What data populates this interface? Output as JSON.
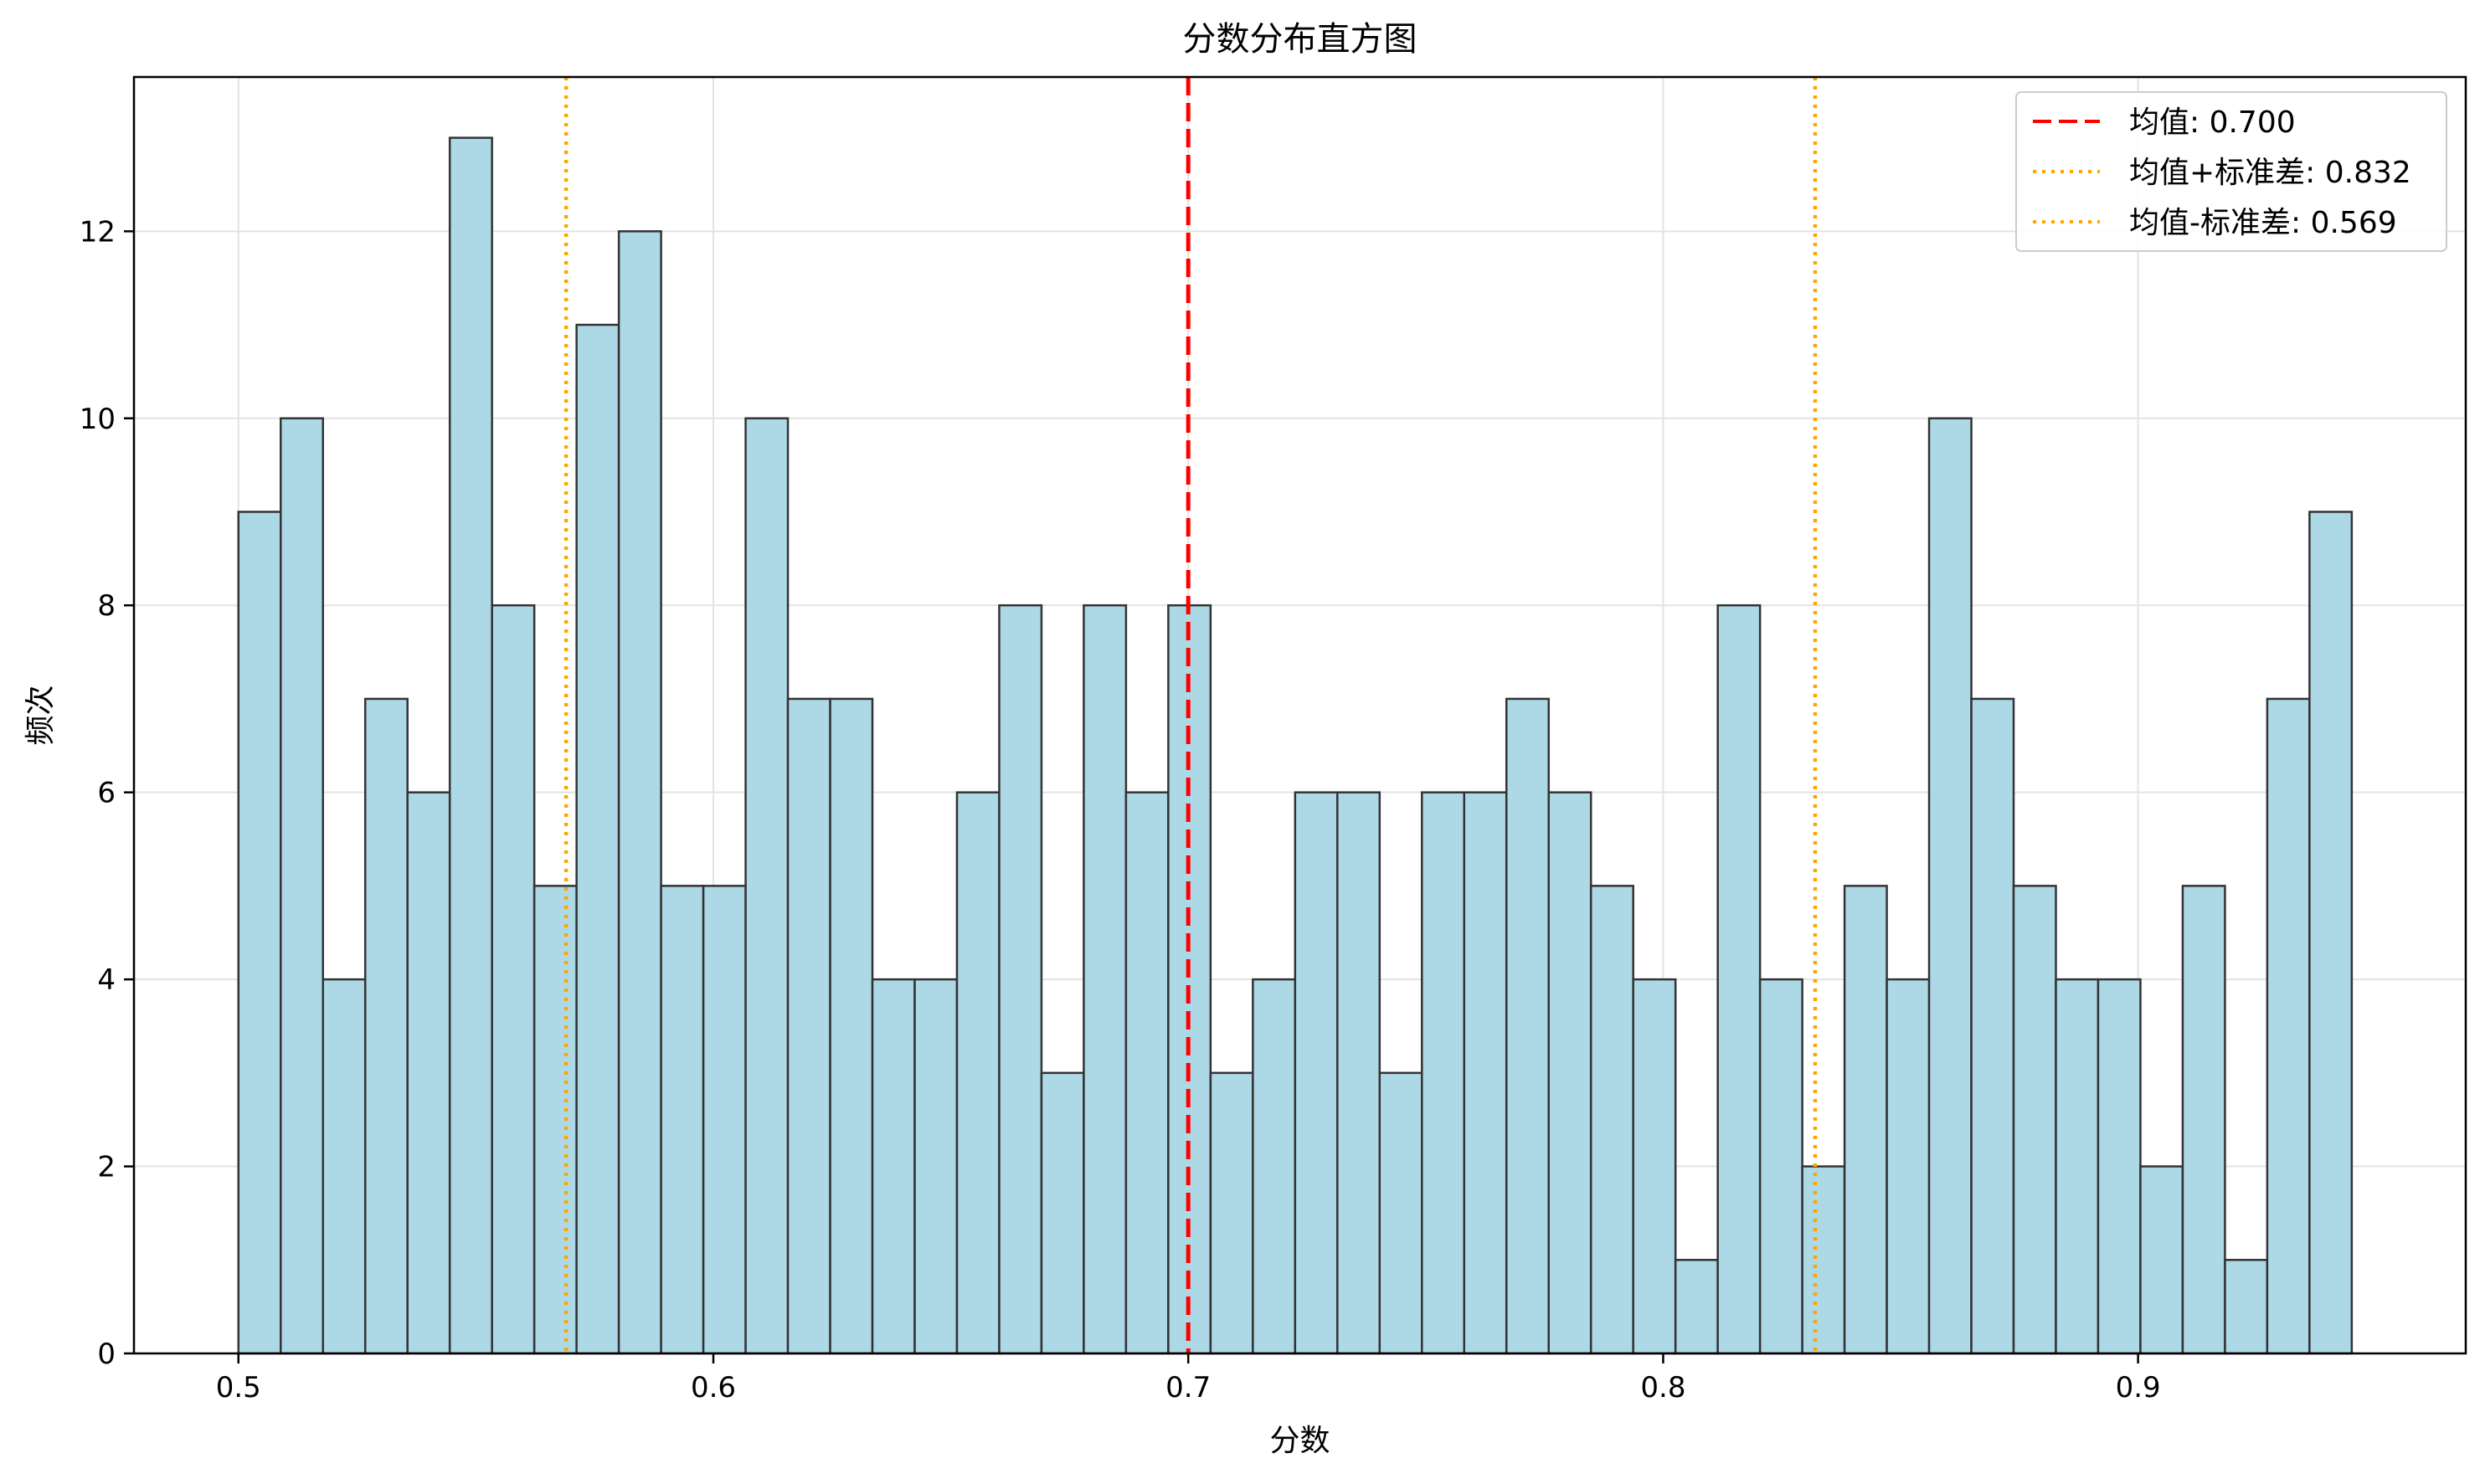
{
  "chart_data": {
    "type": "bar",
    "title": "分数分布直方图",
    "xlabel": "分数",
    "ylabel": "频次",
    "xlim": [
      0.478,
      0.969
    ],
    "ylim": [
      0,
      13.65
    ],
    "bin_start": 0.5,
    "bin_width": 0.0089,
    "x_ticks": [
      0.5,
      0.6,
      0.7,
      0.8,
      0.9
    ],
    "x_tick_labels": [
      "0.5",
      "0.6",
      "0.7",
      "0.8",
      "0.9"
    ],
    "y_ticks": [
      0,
      2,
      4,
      6,
      8,
      10,
      12
    ],
    "y_tick_labels": [
      "0",
      "2",
      "4",
      "6",
      "8",
      "10",
      "12"
    ],
    "values": [
      9,
      10,
      4,
      7,
      6,
      13,
      8,
      5,
      11,
      12,
      5,
      5,
      10,
      7,
      7,
      4,
      4,
      6,
      8,
      3,
      8,
      6,
      8,
      3,
      4,
      6,
      6,
      3,
      6,
      6,
      7,
      6,
      5,
      4,
      1,
      8,
      4,
      2,
      5,
      4,
      10,
      7,
      5,
      4,
      4,
      2,
      5,
      1,
      7,
      9
    ],
    "bar_color": "#ADD8E6",
    "bar_edge_color": "#333333",
    "grid": true,
    "legend_position": "top-right",
    "reference_lines": [
      {
        "x": 0.7,
        "label": "均值: 0.700",
        "color": "#FF0000",
        "style": "dashed"
      },
      {
        "x": 0.832,
        "label": "均值+标准差: 0.832",
        "color": "#FFA500",
        "style": "dotted"
      },
      {
        "x": 0.569,
        "label": "均值-标准差: 0.569",
        "color": "#FFA500",
        "style": "dotted"
      }
    ]
  }
}
